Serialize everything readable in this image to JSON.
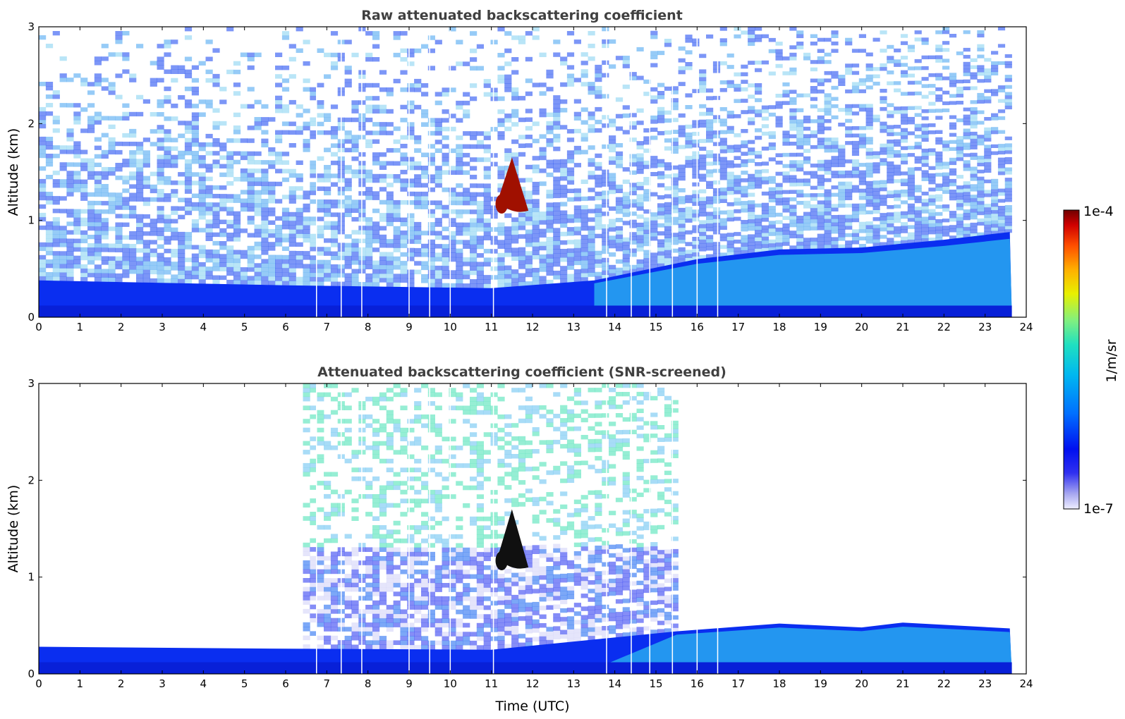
{
  "chart_data": [
    {
      "type": "heatmap",
      "title": "Raw attenuated backscattering coefficient",
      "xlabel": "",
      "ylabel": "Altitude (km)",
      "xlim": [
        0,
        24
      ],
      "ylim": [
        0,
        3
      ],
      "xticks": [
        "0",
        "1",
        "2",
        "3",
        "4",
        "5",
        "6",
        "7",
        "8",
        "9",
        "10",
        "11",
        "12",
        "13",
        "14",
        "15",
        "16",
        "17",
        "18",
        "19",
        "20",
        "21",
        "22",
        "23",
        "24"
      ],
      "yticks": [
        "0",
        "1",
        "2",
        "3"
      ],
      "data_end_time": 23.65,
      "boundary_layer_top_km": [
        [
          0,
          0.38
        ],
        [
          6,
          0.33
        ],
        [
          11,
          0.3
        ],
        [
          13.5,
          0.38
        ],
        [
          16,
          0.6
        ],
        [
          18,
          0.7
        ],
        [
          20,
          0.72
        ],
        [
          22,
          0.8
        ],
        [
          23.6,
          0.88
        ]
      ],
      "features": [
        {
          "label": "cloud",
          "time_range": [
            11.1,
            11.9
          ],
          "altitude_range": [
            1.05,
            1.65
          ],
          "level": "1e-4"
        }
      ]
    },
    {
      "type": "heatmap",
      "title": "Attenuated backscattering coefficient (SNR-screened)",
      "xlabel": "Time (UTC)",
      "ylabel": "Altitude (km)",
      "xlim": [
        0,
        24
      ],
      "ylim": [
        0,
        3
      ],
      "xticks": [
        "0",
        "1",
        "2",
        "3",
        "4",
        "5",
        "6",
        "7",
        "8",
        "9",
        "10",
        "11",
        "12",
        "13",
        "14",
        "15",
        "16",
        "17",
        "18",
        "19",
        "20",
        "21",
        "22",
        "23",
        "24"
      ],
      "yticks": [
        "0",
        "1",
        "2",
        "3"
      ],
      "data_end_time": 23.65,
      "boundary_layer_top_km": [
        [
          0,
          0.28
        ],
        [
          6,
          0.26
        ],
        [
          11,
          0.25
        ],
        [
          15.5,
          0.44
        ],
        [
          18,
          0.52
        ],
        [
          20,
          0.48
        ],
        [
          21,
          0.53
        ],
        [
          23.6,
          0.47
        ]
      ],
      "features": [
        {
          "label": "cloud",
          "time_range": [
            11.1,
            11.9
          ],
          "altitude_range": [
            1.05,
            1.7
          ],
          "level": "1e-4"
        }
      ]
    }
  ],
  "colorbar": {
    "label": "1/m/sr",
    "min_label": "1e-7",
    "max_label": "1e-4",
    "scale": "log",
    "colors": [
      "#e8e8f8",
      "#a8a8f0",
      "#6868f0",
      "#0000f0",
      "#0060ff",
      "#00b0f0",
      "#20e0c0",
      "#80f080",
      "#e0f000",
      "#ffc000",
      "#ff6000",
      "#e00000",
      "#800000"
    ]
  }
}
